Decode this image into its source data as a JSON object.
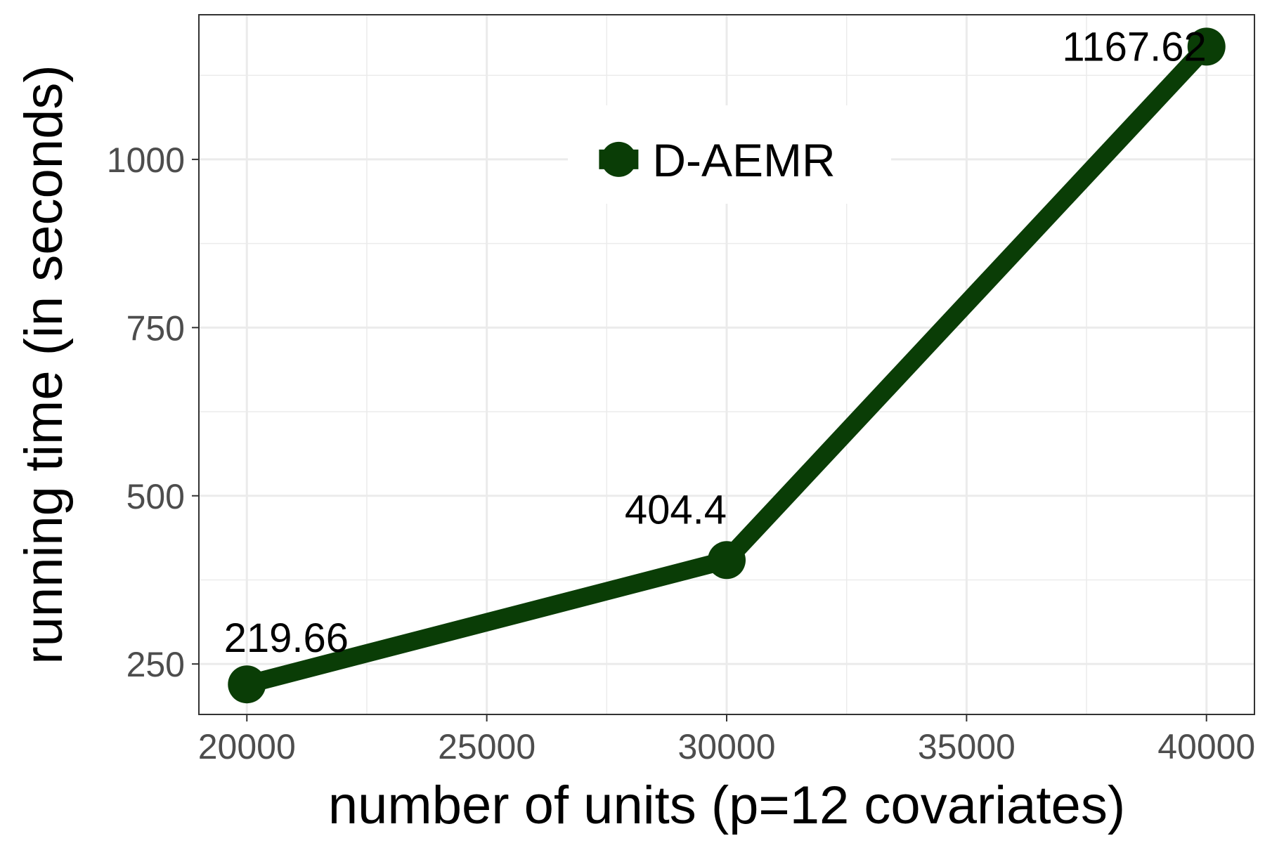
{
  "chart_data": {
    "type": "line",
    "x": [
      20000,
      30000,
      40000
    ],
    "series": [
      {
        "name": "D-AEMR",
        "values": [
          219.66,
          404.4,
          1167.62
        ],
        "labels": [
          "219.66",
          "404.4",
          "1167.62"
        ]
      }
    ],
    "xlabel": "number of units (p=12 covariates)",
    "ylabel": "running time (in seconds)",
    "xlim": [
      19000,
      41000
    ],
    "ylim": [
      175,
      1215
    ],
    "xticks": [
      20000,
      25000,
      30000,
      35000,
      40000
    ],
    "xtick_labels": [
      "20000",
      "25000",
      "30000",
      "35000",
      "40000"
    ],
    "yticks": [
      250,
      500,
      750,
      1000
    ],
    "ytick_labels": [
      "250",
      "500",
      "750",
      "1000"
    ],
    "grid": true,
    "legend_position": "inside-top-center",
    "colors": {
      "series": "#0a3d06",
      "grid": "#ebebeb",
      "border": "#333333"
    }
  }
}
